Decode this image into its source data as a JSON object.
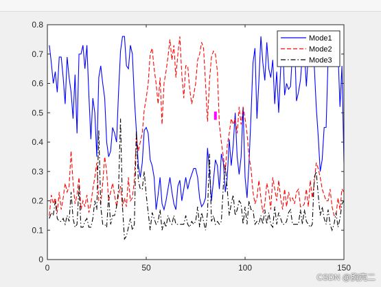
{
  "watermark": "CSDN @胸壳二",
  "chart_data": {
    "type": "line",
    "title": "",
    "xlabel": "",
    "ylabel": "",
    "xlim": [
      0,
      150
    ],
    "ylim": [
      0,
      0.8
    ],
    "xticks": [
      0,
      50,
      100,
      150
    ],
    "yticks": [
      0,
      0.1,
      0.2,
      0.3,
      0.4,
      0.5,
      0.6,
      0.7,
      0.8
    ],
    "grid": false,
    "legend_position": "top-right",
    "x": [
      1,
      2,
      3,
      4,
      5,
      6,
      7,
      8,
      9,
      10,
      11,
      12,
      13,
      14,
      15,
      16,
      17,
      18,
      19,
      20,
      21,
      22,
      23,
      24,
      25,
      26,
      27,
      28,
      29,
      30,
      31,
      32,
      33,
      34,
      35,
      36,
      37,
      38,
      39,
      40,
      41,
      42,
      43,
      44,
      45,
      46,
      47,
      48,
      49,
      50,
      51,
      52,
      53,
      54,
      55,
      56,
      57,
      58,
      59,
      60,
      61,
      62,
      63,
      64,
      65,
      66,
      67,
      68,
      69,
      70,
      71,
      72,
      73,
      74,
      75,
      76,
      77,
      78,
      79,
      80,
      81,
      82,
      83,
      84,
      85,
      86,
      87,
      88,
      89,
      90,
      91,
      92,
      93,
      94,
      95,
      96,
      97,
      98,
      99,
      100,
      101,
      102,
      103,
      104,
      105,
      106,
      107,
      108,
      109,
      110,
      111,
      112,
      113,
      114,
      115,
      116,
      117,
      118,
      119,
      120,
      121,
      122,
      123,
      124,
      125,
      126,
      127,
      128,
      129,
      130,
      131,
      132,
      133,
      134,
      135,
      136,
      137,
      138,
      139,
      140,
      141,
      142,
      143,
      144,
      145,
      146,
      147,
      148,
      149,
      150
    ],
    "series": [
      {
        "name": "Mode1",
        "color": "#0000ff",
        "dash": "solid",
        "values": [
          0.73,
          0.67,
          0.6,
          0.64,
          0.57,
          0.69,
          0.69,
          0.62,
          0.53,
          0.69,
          0.62,
          0.57,
          0.48,
          0.63,
          0.43,
          0.7,
          0.7,
          0.73,
          0.65,
          0.73,
          0.56,
          0.41,
          0.55,
          0.5,
          0.35,
          0.62,
          0.66,
          0.6,
          0.55,
          0.4,
          0.35,
          0.37,
          0.45,
          0.43,
          0.4,
          0.57,
          0.71,
          0.76,
          0.76,
          0.66,
          0.65,
          0.73,
          0.7,
          0.55,
          0.44,
          0.32,
          0.28,
          0.33,
          0.44,
          0.45,
          0.43,
          0.34,
          0.32,
          0.28,
          0.17,
          0.22,
          0.28,
          0.19,
          0.17,
          0.2,
          0.24,
          0.28,
          0.23,
          0.19,
          0.17,
          0.25,
          0.27,
          0.2,
          0.24,
          0.28,
          0.24,
          0.27,
          0.29,
          0.31,
          0.31,
          0.28,
          0.21,
          0.18,
          0.19,
          0.21,
          0.38,
          0.3,
          0.2,
          0.27,
          0.34,
          0.32,
          0.24,
          0.36,
          0.33,
          0.23,
          0.28,
          0.41,
          0.32,
          0.39,
          0.5,
          0.35,
          0.29,
          0.35,
          0.52,
          0.28,
          0.21,
          0.33,
          0.49,
          0.67,
          0.72,
          0.48,
          0.61,
          0.76,
          0.67,
          0.61,
          0.74,
          0.65,
          0.62,
          0.68,
          0.53,
          0.64,
          0.5,
          0.65,
          0.75,
          0.56,
          0.6,
          0.58,
          0.59,
          0.71,
          0.75,
          0.54,
          0.57,
          0.61,
          0.7,
          0.71,
          0.59,
          0.7,
          0.71,
          0.73,
          0.66,
          0.52,
          0.42,
          0.3,
          0.34,
          0.45,
          0.45,
          0.69,
          0.73,
          0.72,
          0.66,
          0.71,
          0.71,
          0.52,
          0.66,
          0.33
        ]
      },
      {
        "name": "Mode2",
        "color": "#ff0000",
        "dash": "dashed",
        "values": [
          0.15,
          0.22,
          0.19,
          0.21,
          0.16,
          0.23,
          0.17,
          0.21,
          0.26,
          0.23,
          0.25,
          0.37,
          0.26,
          0.19,
          0.22,
          0.28,
          0.17,
          0.2,
          0.18,
          0.22,
          0.16,
          0.19,
          0.24,
          0.28,
          0.33,
          0.2,
          0.19,
          0.26,
          0.35,
          0.3,
          0.2,
          0.23,
          0.26,
          0.22,
          0.18,
          0.22,
          0.25,
          0.18,
          0.21,
          0.18,
          0.28,
          0.2,
          0.21,
          0.27,
          0.42,
          0.37,
          0.4,
          0.43,
          0.51,
          0.55,
          0.6,
          0.7,
          0.72,
          0.65,
          0.6,
          0.53,
          0.62,
          0.46,
          0.6,
          0.64,
          0.69,
          0.75,
          0.68,
          0.73,
          0.62,
          0.7,
          0.76,
          0.63,
          0.55,
          0.66,
          0.66,
          0.58,
          0.53,
          0.56,
          0.6,
          0.68,
          0.7,
          0.74,
          0.72,
          0.6,
          0.47,
          0.61,
          0.69,
          0.71,
          0.7,
          0.64,
          0.46,
          0.4,
          0.35,
          0.3,
          0.39,
          0.43,
          0.48,
          0.46,
          0.48,
          0.43,
          0.52,
          0.46,
          0.52,
          0.48,
          0.43,
          0.35,
          0.31,
          0.23,
          0.19,
          0.21,
          0.27,
          0.21,
          0.16,
          0.19,
          0.26,
          0.23,
          0.17,
          0.28,
          0.24,
          0.2,
          0.27,
          0.21,
          0.17,
          0.24,
          0.18,
          0.23,
          0.2,
          0.21,
          0.19,
          0.23,
          0.24,
          0.18,
          0.18,
          0.19,
          0.24,
          0.18,
          0.27,
          0.21,
          0.26,
          0.33,
          0.31,
          0.28,
          0.24,
          0.22,
          0.2,
          0.2,
          0.24,
          0.18,
          0.15,
          0.15,
          0.21,
          0.17,
          0.24,
          0.23
        ]
      },
      {
        "name": "Mode3",
        "color": "#000000",
        "dash": "dashdot",
        "values": [
          0.14,
          0.16,
          0.15,
          0.2,
          0.14,
          0.13,
          0.13,
          0.14,
          0.12,
          0.15,
          0.13,
          0.23,
          0.14,
          0.11,
          0.12,
          0.25,
          0.11,
          0.11,
          0.13,
          0.14,
          0.11,
          0.11,
          0.14,
          0.2,
          0.17,
          0.44,
          0.18,
          0.12,
          0.12,
          0.11,
          0.22,
          0.12,
          0.15,
          0.15,
          0.18,
          0.24,
          0.48,
          0.18,
          0.07,
          0.08,
          0.11,
          0.14,
          0.1,
          0.12,
          0.44,
          0.27,
          0.24,
          0.24,
          0.3,
          0.22,
          0.16,
          0.1,
          0.16,
          0.14,
          0.12,
          0.13,
          0.17,
          0.1,
          0.13,
          0.11,
          0.15,
          0.13,
          0.12,
          0.15,
          0.12,
          0.12,
          0.12,
          0.12,
          0.12,
          0.15,
          0.12,
          0.11,
          0.13,
          0.12,
          0.13,
          0.18,
          0.11,
          0.16,
          0.13,
          0.1,
          0.16,
          0.36,
          0.13,
          0.15,
          0.12,
          0.13,
          0.12,
          0.13,
          0.25,
          0.32,
          0.24,
          0.15,
          0.19,
          0.22,
          0.15,
          0.17,
          0.2,
          0.19,
          0.12,
          0.18,
          0.12,
          0.2,
          0.17,
          0.17,
          0.12,
          0.13,
          0.12,
          0.15,
          0.12,
          0.17,
          0.12,
          0.16,
          0.12,
          0.11,
          0.18,
          0.12,
          0.16,
          0.14,
          0.12,
          0.12,
          0.13,
          0.16,
          0.17,
          0.12,
          0.12,
          0.12,
          0.12,
          0.17,
          0.12,
          0.17,
          0.13,
          0.12,
          0.11,
          0.12,
          0.28,
          0.3,
          0.22,
          0.15,
          0.18,
          0.14,
          0.12,
          0.17,
          0.12,
          0.1,
          0.12,
          0.16,
          0.11,
          0.14,
          0.19,
          0.2
        ]
      }
    ]
  },
  "marker": {
    "x": 85,
    "y": 0.49,
    "color": "#ff00ff"
  }
}
